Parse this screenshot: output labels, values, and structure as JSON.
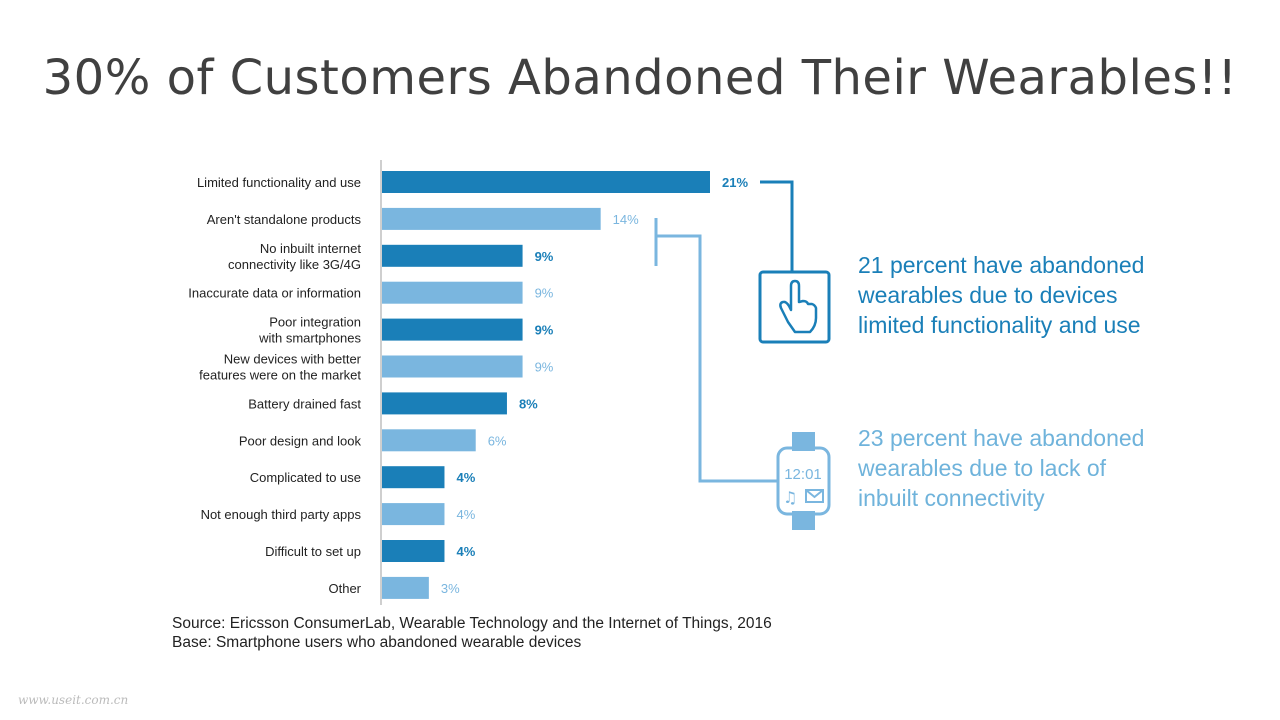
{
  "slide": {
    "title": "30% of Customers Abandoned Their Wearables!!",
    "watermark": "www.useit.com.cn"
  },
  "colors": {
    "dark": "#1a7fb8",
    "light": "#7ab6df",
    "axis": "#bfbfbf"
  },
  "chart_data": {
    "type": "bar",
    "orientation": "horizontal",
    "categories": [
      "Limited functionality and use",
      "Aren't standalone products",
      "No inbuilt internet\nconnectivity like 3G/4G",
      "Inaccurate data or information",
      "Poor integration\nwith smartphones",
      "New devices with better\nfeatures were on the market",
      "Battery drained fast",
      "Poor design and look",
      "Complicated to use",
      "Not enough third party apps",
      "Difficult to set up",
      "Other"
    ],
    "values": [
      21,
      14,
      9,
      9,
      9,
      9,
      8,
      6,
      4,
      4,
      4,
      3
    ],
    "value_labels": [
      "21%",
      "14%",
      "9%",
      "9%",
      "9%",
      "9%",
      "8%",
      "6%",
      "4%",
      "4%",
      "4%",
      "3%"
    ],
    "shades": [
      "dark",
      "light",
      "dark",
      "light",
      "dark",
      "light",
      "dark",
      "light",
      "dark",
      "light",
      "dark",
      "light"
    ],
    "xlim": [
      0,
      21
    ],
    "grid": false,
    "legend": "none",
    "title": "",
    "xlabel": "",
    "ylabel": ""
  },
  "callouts": [
    {
      "text": "21 percent have abandoned wearables due to devices limited functionality and use",
      "icon": "hand-pointer-icon"
    },
    {
      "text": "23 percent have abandoned wearables due to lack of inbuilt connectivity",
      "icon": "smartwatch-icon",
      "watch_time": "12:01"
    }
  ],
  "source": {
    "line1": "Source: Ericsson ConsumerLab, Wearable Technology and the Internet of Things, 2016",
    "line2": "Base: Smartphone users who abandoned wearable devices"
  }
}
